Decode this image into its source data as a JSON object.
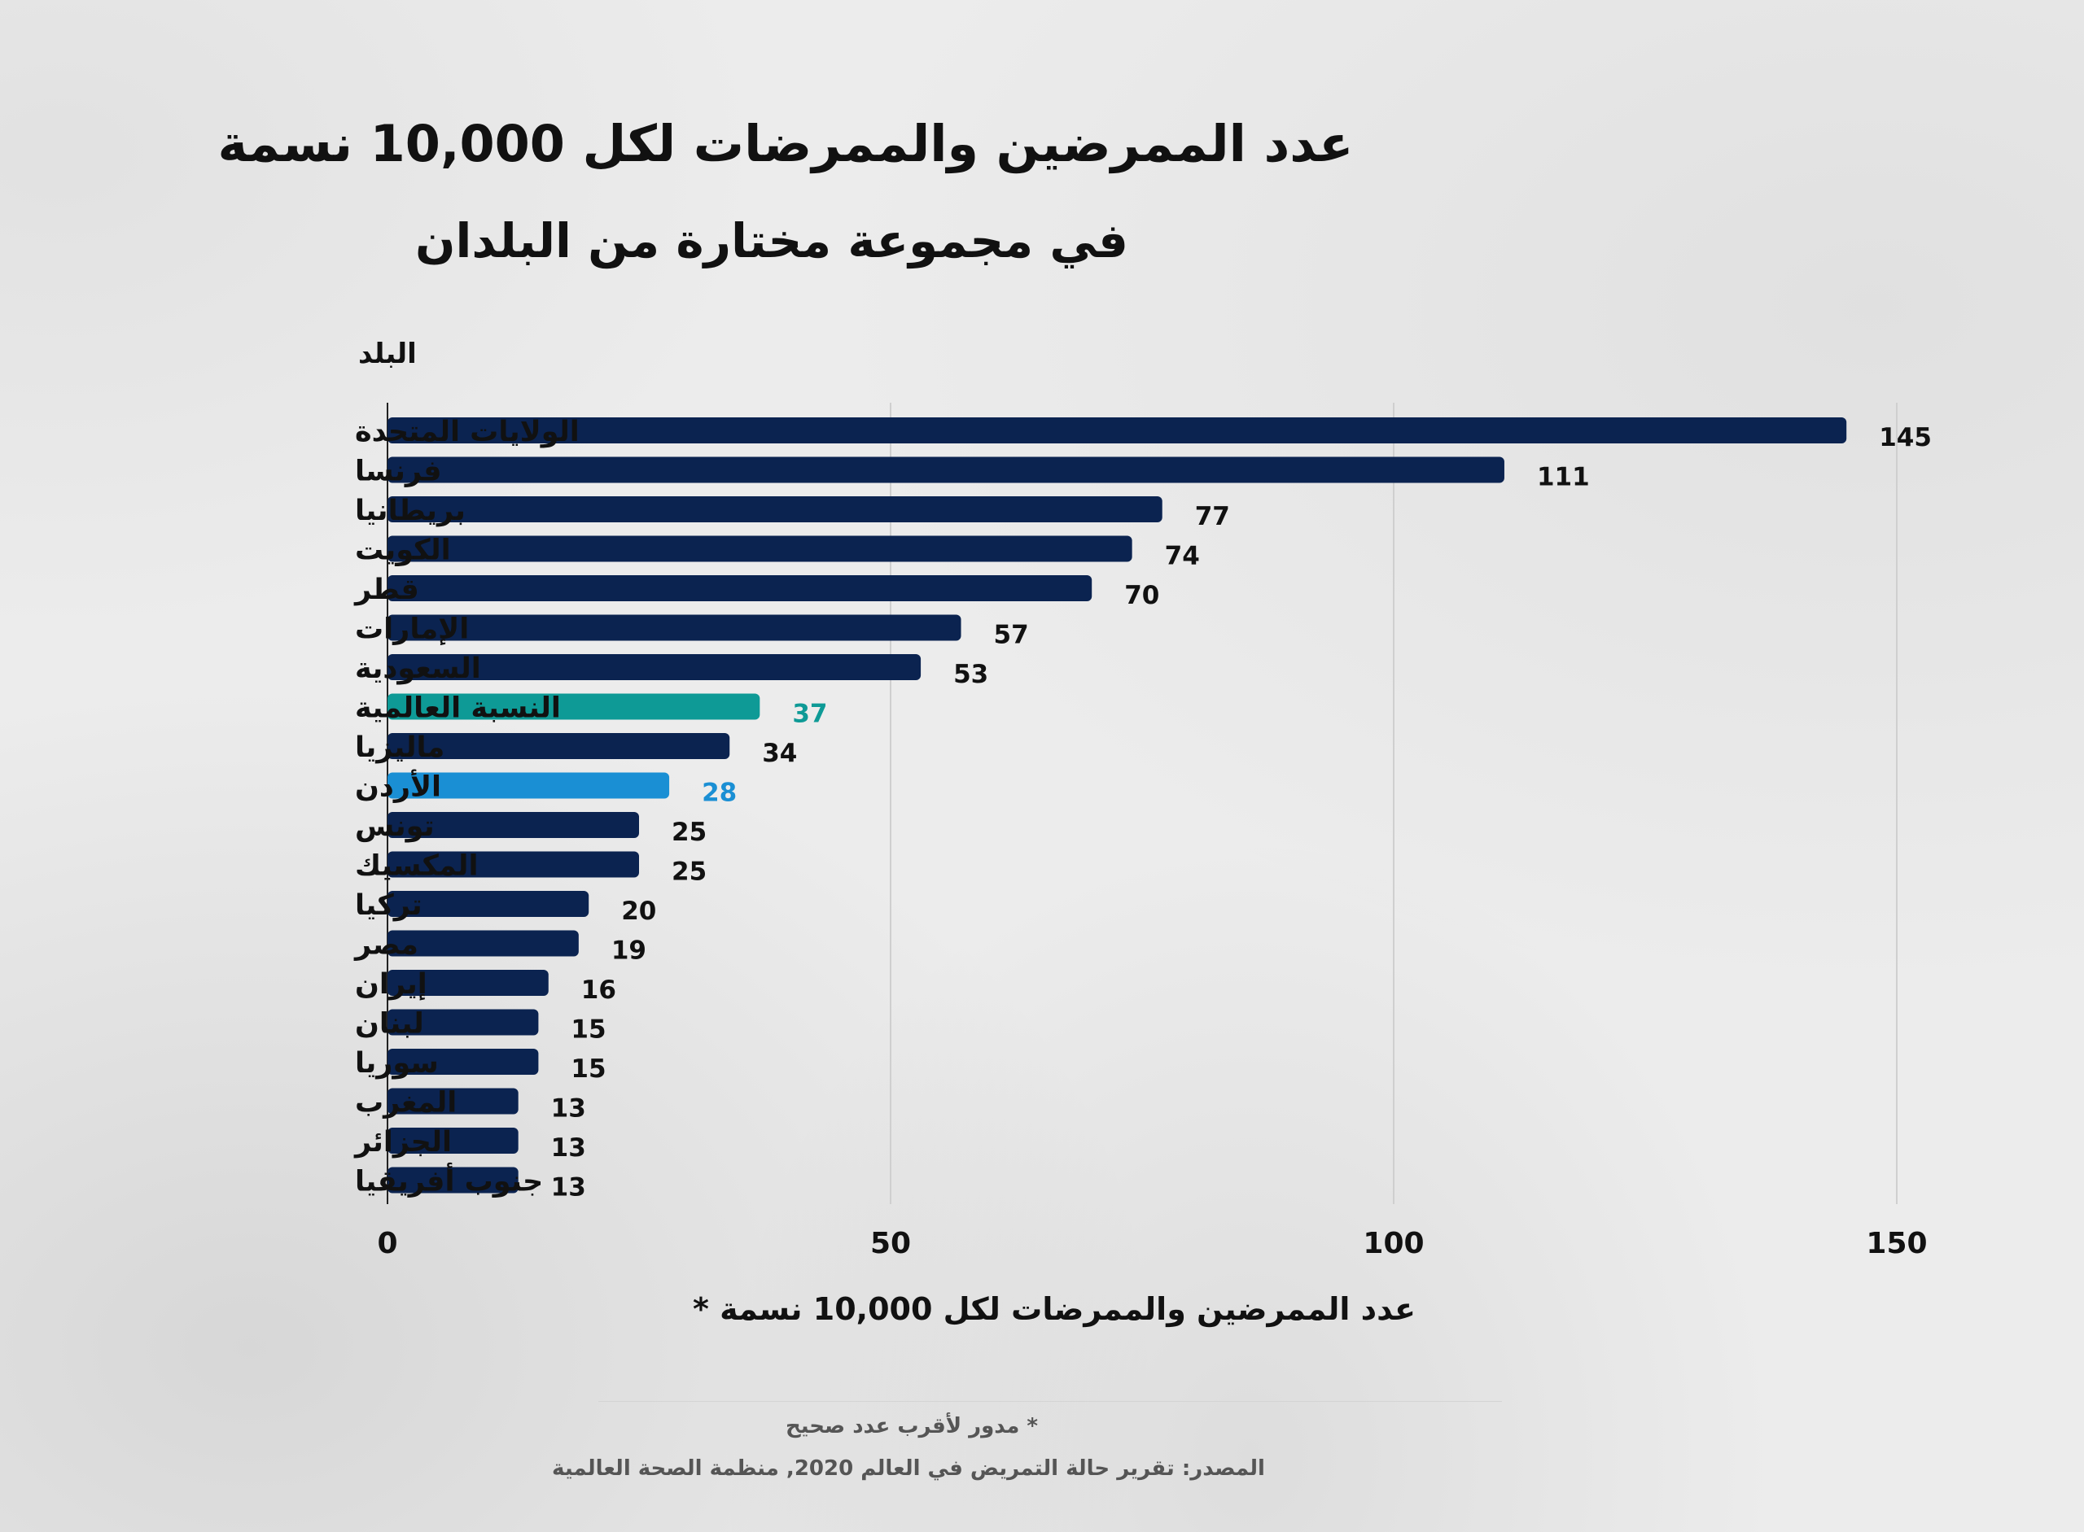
{
  "chart_data": {
    "type": "bar",
    "orientation": "horizontal",
    "title": "عدد الممرضين والممرضات لكل 10,000 نسمة",
    "subtitle": "في مجموعة مختارة من البلدان",
    "ylabel": "البلد",
    "xlabel": "عدد الممرضين والممرضات لكل 10,000 نسمة *",
    "xlim": [
      0,
      150
    ],
    "xticks": [
      0,
      50,
      100,
      150
    ],
    "grid": "vertical",
    "categories": [
      "الولايات المتحدة",
      "فرنسا",
      "بريطانيا",
      "الكويت",
      "قطر",
      "الإمارات",
      "السعودية",
      "النسبة العالمية",
      "ماليزيا",
      "الأردن",
      "تونس",
      "المكسيك",
      "تركيا",
      "مصر",
      "إيران",
      "لبنان",
      "سوريا",
      "المغرب",
      "الجزائر",
      "جنوب أفريقيا"
    ],
    "values": [
      145,
      111,
      77,
      74,
      70,
      57,
      53,
      37,
      34,
      28,
      25,
      25,
      20,
      19,
      16,
      15,
      15,
      13,
      13,
      13
    ],
    "highlights": {
      "النسبة العالمية": "#0e9a96",
      "الأردن": "#1a8fd4"
    },
    "bar_color": "#0b2350"
  },
  "footnote": "* مدور لأقرب عدد صحيح",
  "source": "المصدر: تقرير حالة التمريض في العالم 2020, منظمة الصحة العالمية"
}
